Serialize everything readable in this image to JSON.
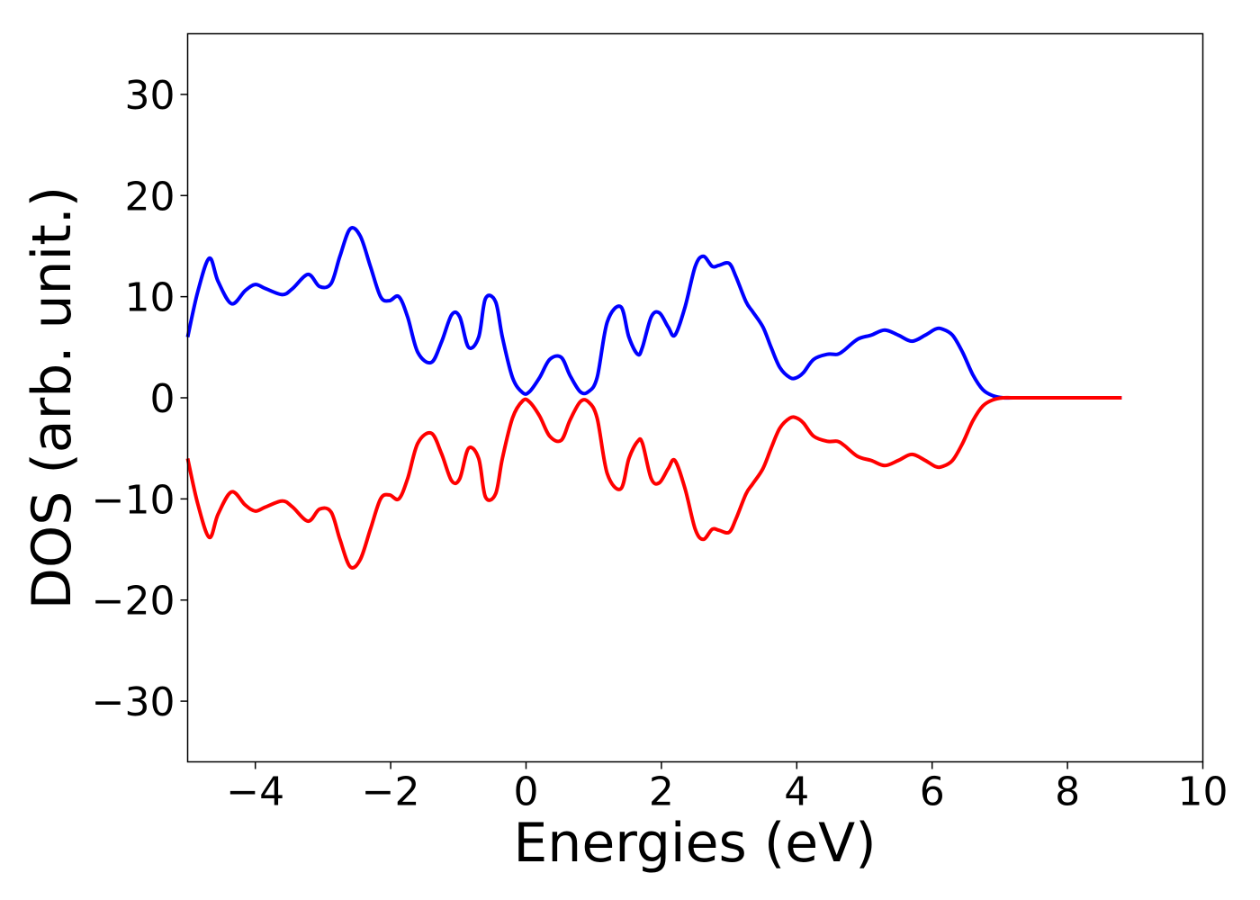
{
  "chart_data": {
    "type": "line",
    "title": "",
    "xlabel": "Energies (eV)",
    "ylabel": "DOS (arb. unit.)",
    "xlim": [
      -5,
      10
    ],
    "ylim": [
      -36,
      36
    ],
    "x_ticks": [
      "−4",
      "−2",
      "0",
      "2",
      "4",
      "6",
      "8",
      "10"
    ],
    "x_tick_values": [
      -4,
      -2,
      0,
      2,
      4,
      6,
      8,
      10
    ],
    "y_ticks": [
      "−30",
      "−20",
      "−10",
      "0",
      "10",
      "20",
      "30"
    ],
    "y_tick_values": [
      -30,
      -20,
      -10,
      0,
      10,
      20,
      30
    ],
    "grid": false,
    "legend": "none",
    "series": [
      {
        "color": "#0000ff",
        "x": [
          -5.0,
          -4.85,
          -4.68,
          -4.55,
          -4.35,
          -4.15,
          -4.0,
          -3.85,
          -3.6,
          -3.45,
          -3.22,
          -3.05,
          -2.88,
          -2.75,
          -2.6,
          -2.45,
          -2.3,
          -2.15,
          -2.02,
          -1.88,
          -1.75,
          -1.6,
          -1.4,
          -1.25,
          -1.1,
          -0.98,
          -0.85,
          -0.7,
          -0.6,
          -0.45,
          -0.35,
          -0.2,
          -0.05,
          0.05,
          0.2,
          0.35,
          0.52,
          0.65,
          0.8,
          0.92,
          1.05,
          1.2,
          1.4,
          1.52,
          1.65,
          1.72,
          1.85,
          1.97,
          2.1,
          2.2,
          2.35,
          2.5,
          2.62,
          2.75,
          2.85,
          3.0,
          3.1,
          3.25,
          3.35,
          3.5,
          3.62,
          3.75,
          3.9,
          4.0,
          4.1,
          4.25,
          4.45,
          4.6,
          4.7,
          4.9,
          5.1,
          5.3,
          5.5,
          5.7,
          5.9,
          6.05,
          6.15,
          6.3,
          6.45,
          6.6,
          6.75,
          6.9,
          7.05,
          7.2,
          7.6,
          8.0,
          8.4,
          8.8
        ],
        "y": [
          6.0,
          10.5,
          13.8,
          11.5,
          9.3,
          10.6,
          11.2,
          10.8,
          10.2,
          10.8,
          12.2,
          11.0,
          11.3,
          14.0,
          16.7,
          16.0,
          13.0,
          10.0,
          9.6,
          10.0,
          8.0,
          4.5,
          3.5,
          5.5,
          8.2,
          8.0,
          5.0,
          6.0,
          9.8,
          9.5,
          6.0,
          2.0,
          0.5,
          0.6,
          2.0,
          3.8,
          4.0,
          2.2,
          0.6,
          0.6,
          2.0,
          7.5,
          9.0,
          6.0,
          4.3,
          5.0,
          8.0,
          8.4,
          7.0,
          6.2,
          9.0,
          13.0,
          14.0,
          13.0,
          13.1,
          13.3,
          12.0,
          9.5,
          8.5,
          7.0,
          5.0,
          3.0,
          2.0,
          2.0,
          2.5,
          3.8,
          4.3,
          4.3,
          4.7,
          5.8,
          6.2,
          6.7,
          6.2,
          5.6,
          6.2,
          6.8,
          6.8,
          6.2,
          4.5,
          2.3,
          0.8,
          0.2,
          0.0,
          0.0,
          0.0,
          0.0,
          0.0,
          0.0
        ]
      },
      {
        "color": "#ff0000",
        "x": [
          -5.0,
          -4.85,
          -4.68,
          -4.55,
          -4.35,
          -4.15,
          -4.0,
          -3.85,
          -3.6,
          -3.45,
          -3.22,
          -3.05,
          -2.88,
          -2.75,
          -2.6,
          -2.45,
          -2.3,
          -2.15,
          -2.02,
          -1.88,
          -1.75,
          -1.6,
          -1.4,
          -1.25,
          -1.1,
          -0.98,
          -0.85,
          -0.7,
          -0.6,
          -0.45,
          -0.35,
          -0.2,
          -0.05,
          0.05,
          0.2,
          0.35,
          0.52,
          0.65,
          0.8,
          0.92,
          1.05,
          1.2,
          1.4,
          1.52,
          1.65,
          1.72,
          1.85,
          1.97,
          2.1,
          2.2,
          2.35,
          2.5,
          2.62,
          2.75,
          2.85,
          3.0,
          3.1,
          3.25,
          3.35,
          3.5,
          3.62,
          3.75,
          3.9,
          4.0,
          4.1,
          4.25,
          4.45,
          4.6,
          4.7,
          4.9,
          5.1,
          5.3,
          5.5,
          5.7,
          5.9,
          6.05,
          6.15,
          6.3,
          6.45,
          6.6,
          6.75,
          6.9,
          7.05,
          7.2,
          7.6,
          8.0,
          8.4,
          8.8
        ],
        "y": [
          -6.0,
          -10.5,
          -13.8,
          -11.5,
          -9.3,
          -10.6,
          -11.2,
          -10.8,
          -10.2,
          -10.8,
          -12.2,
          -11.0,
          -11.3,
          -14.0,
          -16.7,
          -16.0,
          -13.0,
          -10.0,
          -9.6,
          -10.0,
          -8.0,
          -4.5,
          -3.5,
          -5.5,
          -8.2,
          -8.0,
          -5.0,
          -6.0,
          -9.8,
          -9.5,
          -6.0,
          -2.0,
          -0.3,
          -0.4,
          -1.8,
          -3.8,
          -4.2,
          -2.2,
          -0.4,
          -0.4,
          -2.0,
          -7.5,
          -9.0,
          -6.0,
          -4.3,
          -4.5,
          -8.0,
          -8.4,
          -7.0,
          -6.2,
          -9.0,
          -13.0,
          -14.0,
          -13.0,
          -13.1,
          -13.3,
          -12.0,
          -9.5,
          -8.5,
          -7.0,
          -5.0,
          -3.0,
          -2.0,
          -2.0,
          -2.5,
          -3.8,
          -4.3,
          -4.3,
          -4.7,
          -5.8,
          -6.2,
          -6.7,
          -6.2,
          -5.6,
          -6.2,
          -6.8,
          -6.8,
          -6.2,
          -4.5,
          -2.3,
          -0.8,
          -0.2,
          0.0,
          0.0,
          0.0,
          0.0,
          0.0,
          0.0
        ]
      }
    ]
  }
}
